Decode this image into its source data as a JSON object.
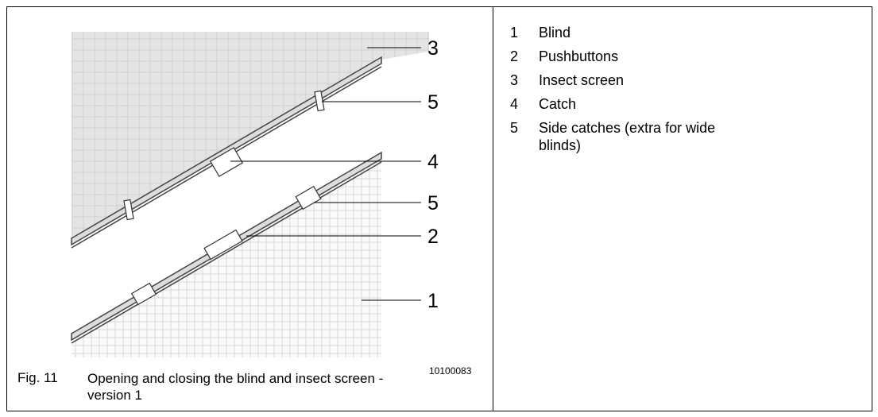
{
  "figure": {
    "callouts": [
      "3",
      "5",
      "4",
      "5",
      "2",
      "1"
    ],
    "id": "10100083"
  },
  "caption": {
    "label": "Fig. 11",
    "text": "Opening and closing the blind and insect screen - version 1"
  },
  "legend": [
    {
      "number": "1",
      "text": "Blind"
    },
    {
      "number": "2",
      "text": "Pushbuttons"
    },
    {
      "number": "3",
      "text": "Insect screen"
    },
    {
      "number": "4",
      "text": "Catch"
    },
    {
      "number": "5",
      "text": "Side catches (extra for wide blinds)"
    }
  ]
}
